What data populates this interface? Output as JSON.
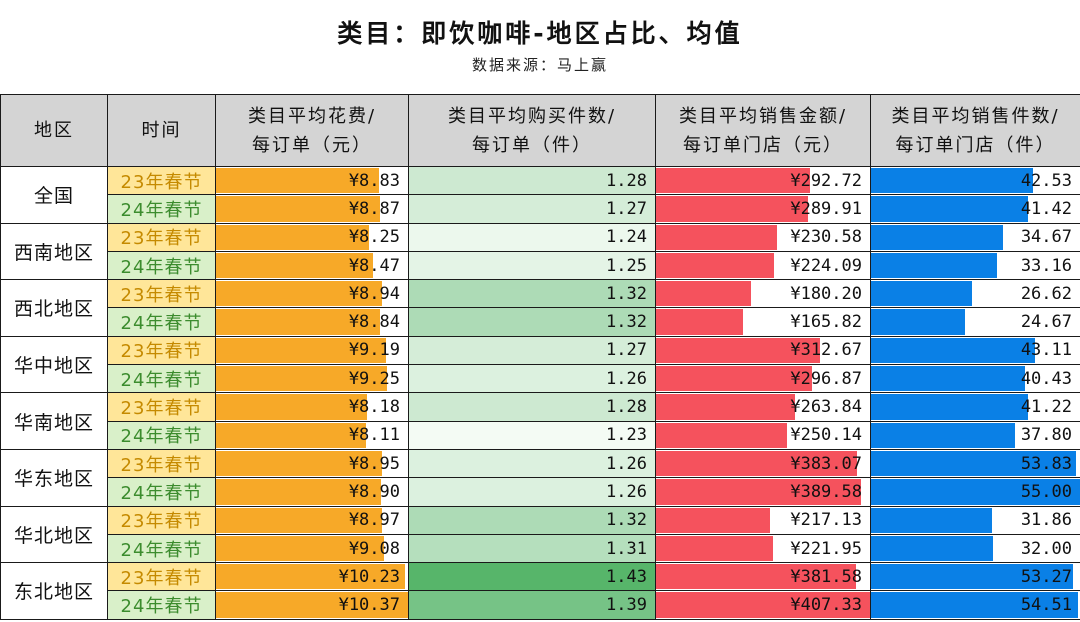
{
  "title": "类目：即饮咖啡-地区占比、均值",
  "subtitle": "数据来源：马上赢",
  "headers": {
    "region": "地区",
    "period": "时间",
    "spend_l1": "类目平均花费/",
    "spend_l2": "每订单（元）",
    "units_l1": "类目平均购买件数/",
    "units_l2": "每订单（件）",
    "sales_l1": "类目平均销售金额/",
    "sales_l2": "每订单门店（元）",
    "qty_l1": "类目平均销售件数/",
    "qty_l2": "每订单门店（件）"
  },
  "colors": {
    "spend_bar": "#f7a928",
    "sales_bar": "#f5525d",
    "qty_bar": "#0a80e6",
    "units_heat_low": "#f4fbf4",
    "units_heat_high": "#57b56a"
  },
  "chart_data": {
    "type": "table",
    "columns": [
      "地区",
      "时间",
      "类目平均花费/每订单（元）",
      "类目平均购买件数/每订单（件）",
      "类目平均销售金额/每订单门店（元）",
      "类目平均销售件数/每订单门店（件）"
    ],
    "regions": [
      {
        "name": "全国",
        "rows": [
          {
            "period": "23年春节",
            "spend": "¥8.83",
            "units": "1.28",
            "sales": "¥292.72",
            "qty": "42.53"
          },
          {
            "period": "24年春节",
            "spend": "¥8.87",
            "units": "1.27",
            "sales": "¥289.91",
            "qty": "41.42"
          }
        ]
      },
      {
        "name": "西南地区",
        "rows": [
          {
            "period": "23年春节",
            "spend": "¥8.25",
            "units": "1.24",
            "sales": "¥230.58",
            "qty": "34.67"
          },
          {
            "period": "24年春节",
            "spend": "¥8.47",
            "units": "1.25",
            "sales": "¥224.09",
            "qty": "33.16"
          }
        ]
      },
      {
        "name": "西北地区",
        "rows": [
          {
            "period": "23年春节",
            "spend": "¥8.94",
            "units": "1.32",
            "sales": "¥180.20",
            "qty": "26.62"
          },
          {
            "period": "24年春节",
            "spend": "¥8.84",
            "units": "1.32",
            "sales": "¥165.82",
            "qty": "24.67"
          }
        ]
      },
      {
        "name": "华中地区",
        "rows": [
          {
            "period": "23年春节",
            "spend": "¥9.19",
            "units": "1.27",
            "sales": "¥312.67",
            "qty": "43.11"
          },
          {
            "period": "24年春节",
            "spend": "¥9.25",
            "units": "1.26",
            "sales": "¥296.87",
            "qty": "40.43"
          }
        ]
      },
      {
        "name": "华南地区",
        "rows": [
          {
            "period": "23年春节",
            "spend": "¥8.18",
            "units": "1.28",
            "sales": "¥263.84",
            "qty": "41.22"
          },
          {
            "period": "24年春节",
            "spend": "¥8.11",
            "units": "1.23",
            "sales": "¥250.14",
            "qty": "37.80"
          }
        ]
      },
      {
        "name": "华东地区",
        "rows": [
          {
            "period": "23年春节",
            "spend": "¥8.95",
            "units": "1.26",
            "sales": "¥383.07",
            "qty": "53.83"
          },
          {
            "period": "24年春节",
            "spend": "¥8.90",
            "units": "1.26",
            "sales": "¥389.58",
            "qty": "55.00"
          }
        ]
      },
      {
        "name": "华北地区",
        "rows": [
          {
            "period": "23年春节",
            "spend": "¥8.97",
            "units": "1.32",
            "sales": "¥217.13",
            "qty": "31.86"
          },
          {
            "period": "24年春节",
            "spend": "¥9.08",
            "units": "1.31",
            "sales": "¥221.95",
            "qty": "32.00"
          }
        ]
      },
      {
        "name": "东北地区",
        "rows": [
          {
            "period": "23年春节",
            "spend": "¥10.23",
            "units": "1.43",
            "sales": "¥381.58",
            "qty": "53.27"
          },
          {
            "period": "24年春节",
            "spend": "¥10.37",
            "units": "1.39",
            "sales": "¥407.33",
            "qty": "54.51"
          }
        ]
      }
    ]
  }
}
